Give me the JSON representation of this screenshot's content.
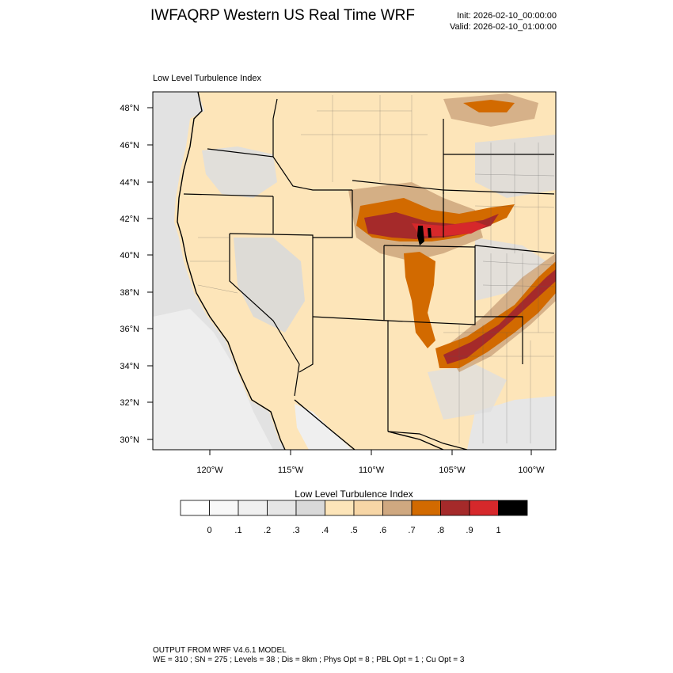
{
  "header": {
    "title": "IWFAQRP Western US Real Time WRF",
    "init": "Init: 2026-02-10_00:00:00",
    "valid": "Valid: 2026-02-10_01:00:00"
  },
  "map": {
    "subtitle": "Low Level Turbulence Index",
    "lat_labels": [
      "48°N",
      "46°N",
      "44°N",
      "42°N",
      "40°N",
      "38°N",
      "36°N",
      "34°N",
      "32°N",
      "30°N"
    ],
    "lon_labels": [
      "120°W",
      "115°W",
      "110°W",
      "105°W",
      "100°W"
    ],
    "colors": {
      "land_base": "#fde5b9",
      "low_gray": "#d9d9d9",
      "tan": "#cfa880",
      "orange": "#d26a00",
      "brick": "#a52a2a",
      "red": "#d6282b",
      "black": "#000000"
    }
  },
  "colorbar": {
    "title": "Low Level Turbulence Index",
    "labels": [
      "0",
      ".1",
      ".2",
      ".3",
      ".4",
      ".5",
      ".6",
      ".7",
      ".8",
      ".9",
      "1"
    ],
    "colors": [
      "#ffffff",
      "#f8f8f8",
      "#f0f0f0",
      "#e6e6e6",
      "#d9d9d9",
      "#fde5b9",
      "#f7d6a6",
      "#cfa880",
      "#d26a00",
      "#a52a2a",
      "#d6282b",
      "#000000"
    ]
  },
  "footer": {
    "line1": "OUTPUT FROM WRF V4.6.1 MODEL",
    "line2": "WE = 310 ; SN = 275 ; Levels = 38 ; Dis = 8km ; Phys Opt = 8 ; PBL Opt = 1 ; Cu Opt = 3"
  }
}
